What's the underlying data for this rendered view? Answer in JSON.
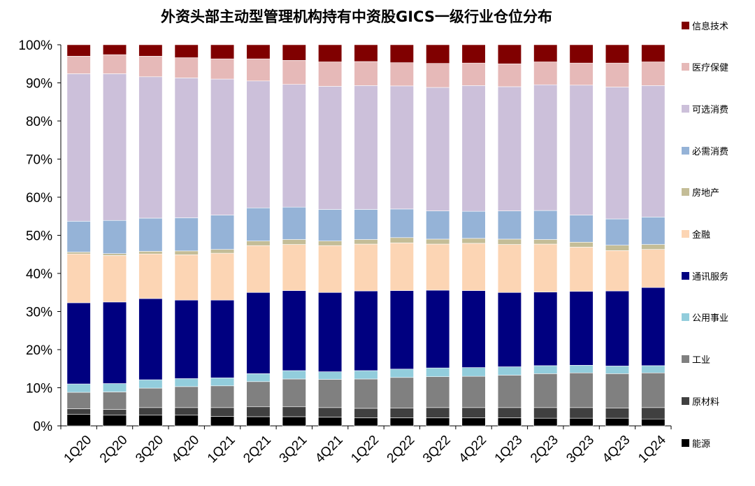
{
  "chart_data": {
    "type": "bar",
    "stacked": true,
    "title": "外资头部主动型管理机构持有中资股GICS一级行业仓位分布",
    "xlabel": "",
    "ylabel": "",
    "ylim": [
      0,
      100
    ],
    "y_ticks": [
      "0%",
      "10%",
      "20%",
      "30%",
      "40%",
      "50%",
      "60%",
      "70%",
      "80%",
      "90%",
      "100%"
    ],
    "grid": false,
    "legend_position": "right",
    "categories": [
      "1Q20",
      "2Q20",
      "3Q20",
      "4Q20",
      "1Q21",
      "2Q21",
      "3Q21",
      "4Q21",
      "1Q22",
      "2Q22",
      "3Q22",
      "4Q22",
      "1Q23",
      "2Q23",
      "3Q23",
      "4Q23",
      "1Q24"
    ],
    "series": [
      {
        "name": "能源",
        "color": "#000000",
        "values": [
          3.0,
          2.8,
          2.8,
          2.8,
          2.5,
          2.4,
          2.4,
          2.3,
          2.1,
          2.1,
          2.1,
          2.1,
          2.1,
          2.0,
          2.0,
          2.0,
          1.8
        ]
      },
      {
        "name": "原材料",
        "color": "#404040",
        "values": [
          1.5,
          1.5,
          2.0,
          2.0,
          2.3,
          2.6,
          2.6,
          2.5,
          2.5,
          2.6,
          2.7,
          2.7,
          2.7,
          2.8,
          2.8,
          2.7,
          3.0
        ]
      },
      {
        "name": "工业",
        "color": "#808080",
        "values": [
          4.3,
          4.6,
          5.1,
          5.5,
          5.7,
          6.6,
          7.3,
          7.4,
          7.7,
          8.0,
          8.1,
          8.2,
          8.5,
          8.9,
          9.1,
          9.0,
          9.1
        ]
      },
      {
        "name": "公用事业",
        "color": "#92cddc",
        "values": [
          2.2,
          2.2,
          2.2,
          2.1,
          2.1,
          2.1,
          2.2,
          2.0,
          2.2,
          2.2,
          2.3,
          2.3,
          2.2,
          2.1,
          2.0,
          2.0,
          1.9
        ]
      },
      {
        "name": "通讯服务",
        "color": "#000080",
        "values": [
          21.3,
          21.4,
          21.3,
          20.6,
          20.4,
          21.3,
          21.0,
          20.8,
          20.9,
          20.6,
          20.4,
          20.2,
          19.5,
          19.3,
          19.4,
          19.7,
          20.5
        ]
      },
      {
        "name": "金融",
        "color": "#fcd5b4",
        "values": [
          12.8,
          12.2,
          11.7,
          11.9,
          12.3,
          12.3,
          12.1,
          12.3,
          12.3,
          12.5,
          12.1,
          12.4,
          12.6,
          12.6,
          11.6,
          10.6,
          10.0
        ]
      },
      {
        "name": "房地产",
        "color": "#c4bd97",
        "values": [
          0.5,
          0.5,
          0.7,
          1.0,
          1.0,
          1.2,
          1.3,
          1.2,
          1.2,
          1.4,
          1.3,
          1.3,
          1.4,
          1.2,
          1.3,
          1.4,
          1.3
        ]
      },
      {
        "name": "必需消费",
        "color": "#95b3d7",
        "values": [
          8.1,
          8.7,
          8.7,
          8.7,
          9.0,
          8.7,
          8.5,
          8.3,
          7.9,
          7.5,
          7.4,
          7.1,
          7.4,
          7.6,
          7.1,
          6.9,
          7.2
        ]
      },
      {
        "name": "可选消费",
        "color": "#ccc0da",
        "values": [
          38.7,
          38.5,
          37.1,
          36.7,
          35.7,
          33.3,
          32.2,
          32.3,
          32.5,
          32.3,
          32.4,
          33.0,
          32.6,
          33.0,
          34.1,
          34.6,
          34.5
        ]
      },
      {
        "name": "医疗保健",
        "color": "#e6b9b8",
        "values": [
          4.6,
          5.0,
          5.4,
          5.3,
          5.3,
          5.8,
          6.3,
          6.4,
          6.3,
          6.1,
          6.3,
          5.9,
          6.0,
          6.0,
          5.8,
          6.3,
          6.2
        ]
      },
      {
        "name": "信息技术",
        "color": "#800000",
        "values": [
          3.0,
          2.6,
          3.0,
          3.4,
          3.7,
          3.7,
          4.1,
          4.5,
          4.4,
          4.7,
          4.9,
          4.8,
          5.0,
          4.5,
          4.8,
          4.8,
          4.5
        ]
      }
    ]
  }
}
